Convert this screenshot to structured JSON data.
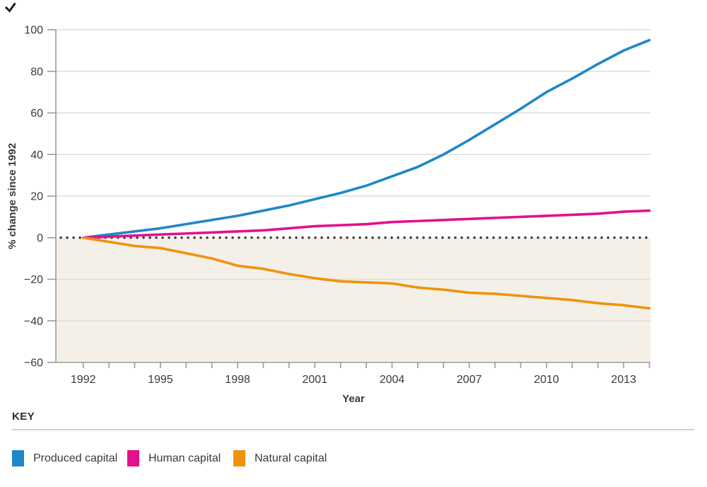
{
  "chart_data": {
    "type": "line",
    "title": "",
    "xlabel": "Year",
    "ylabel": "% change since 1992",
    "x": [
      1992,
      1993,
      1994,
      1995,
      1996,
      1997,
      1998,
      1999,
      2000,
      2001,
      2002,
      2003,
      2004,
      2005,
      2006,
      2007,
      2008,
      2009,
      2010,
      2011,
      2012,
      2013,
      2014
    ],
    "series": [
      {
        "name": "Produced capital",
        "color": "#1f87c8",
        "values": [
          0,
          1.5,
          3,
          4.5,
          6.5,
          8.5,
          10.5,
          13,
          15.5,
          18.5,
          21.5,
          25,
          29.5,
          34,
          40,
          47,
          54.5,
          62,
          70,
          76.5,
          83.5,
          90,
          95
        ]
      },
      {
        "name": "Human capital",
        "color": "#e3118c",
        "values": [
          0,
          0.5,
          1,
          1.5,
          2,
          2.5,
          3,
          3.5,
          4.5,
          5.5,
          6,
          6.5,
          7.5,
          8,
          8.5,
          9,
          9.5,
          10,
          10.5,
          11,
          11.5,
          12.5,
          13
        ]
      },
      {
        "name": "Natural capital",
        "color": "#ef930e",
        "values": [
          0,
          -2,
          -4,
          -5,
          -7.5,
          -10,
          -13.5,
          -15,
          -17.5,
          -19.5,
          -21,
          -21.5,
          -22,
          -24,
          -25,
          -26.5,
          -27,
          -28,
          -29,
          -30,
          -31.5,
          -32.5,
          -34
        ]
      }
    ],
    "ylim": [
      -60,
      100
    ],
    "y_ticks": [
      -60,
      -40,
      -20,
      0,
      20,
      40,
      60,
      80,
      100
    ],
    "x_tick_labels": [
      1992,
      1995,
      1998,
      2001,
      2004,
      2007,
      2010,
      2013
    ],
    "grid": true,
    "zero_line_style": "dotted",
    "negative_region_shade": "#f4f0e8",
    "gridline_color": "#d6d6d6",
    "gridline_color_shaded": "#ddd8d0",
    "axis_color": "#9a9a9a",
    "zero_line_color": "#3b3b3b",
    "legend_position": "bottom"
  },
  "key": {
    "title": "KEY",
    "items": [
      {
        "label": "Produced capital",
        "color": "#1f87c8"
      },
      {
        "label": "Human capital",
        "color": "#e3118c"
      },
      {
        "label": "Natural capital",
        "color": "#ef930e"
      }
    ]
  }
}
